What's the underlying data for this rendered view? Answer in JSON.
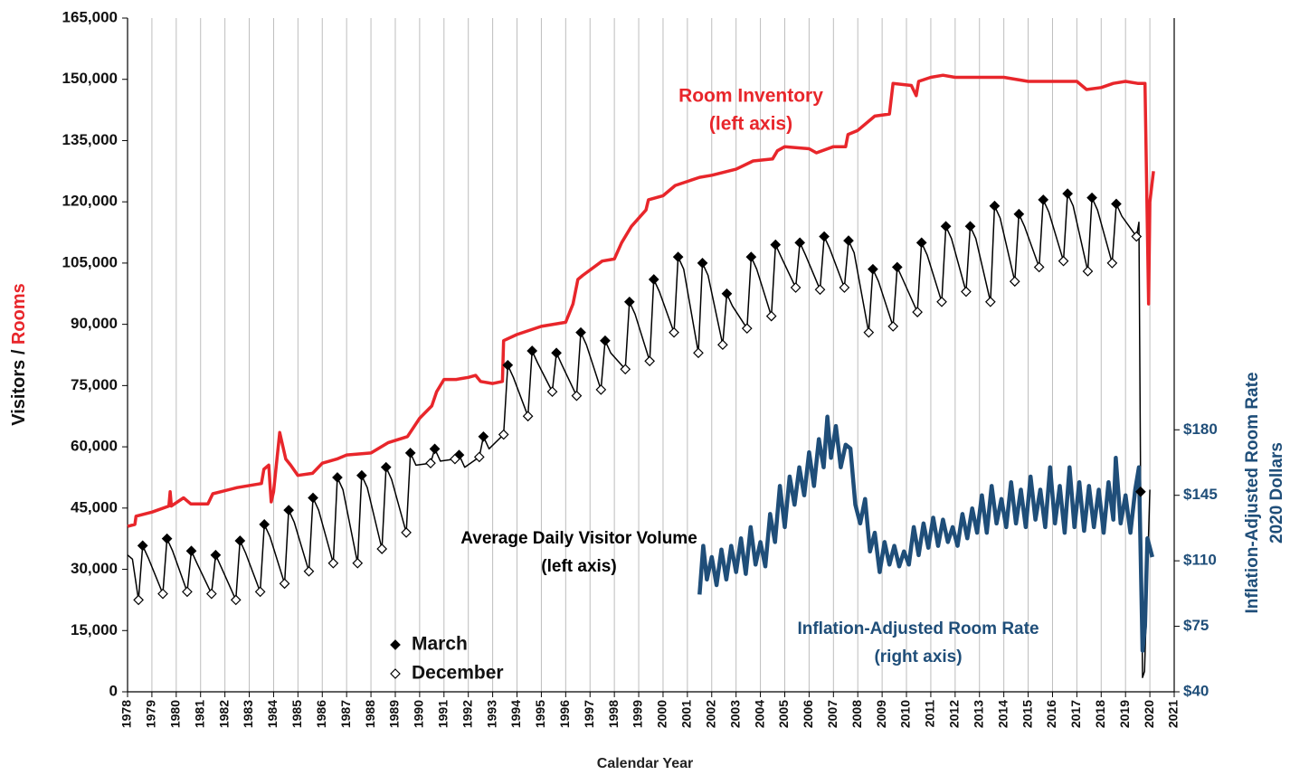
{
  "chart_data": {
    "type": "line",
    "xlabel": "Calendar Year",
    "ylabel": "Visitors /",
    "ylabel_highlight": "Rooms",
    "y2label": [
      "Inflation-Adjusted Room Rate",
      "2020 Dollars"
    ],
    "grid": true,
    "xlim": [
      1978,
      2021
    ],
    "xticks": [
      1978,
      1979,
      1980,
      1981,
      1982,
      1983,
      1984,
      1985,
      1986,
      1987,
      1988,
      1989,
      1990,
      1991,
      1992,
      1993,
      1994,
      1995,
      1996,
      1997,
      1998,
      1999,
      2000,
      2001,
      2002,
      2003,
      2004,
      2005,
      2006,
      2007,
      2008,
      2009,
      2010,
      2011,
      2012,
      2013,
      2014,
      2015,
      2016,
      2017,
      2018,
      2019,
      2020,
      2021
    ],
    "ylim": [
      0,
      165000
    ],
    "yticks": [
      0,
      {
        "value": 15000,
        "label": "15,000"
      },
      {
        "value": 30000,
        "label": "30,000"
      },
      {
        "value": 45000,
        "label": "45,000"
      },
      {
        "value": 60000,
        "label": "60,000"
      },
      {
        "value": 75000,
        "label": "75,000"
      },
      {
        "value": 90000,
        "label": "90,000"
      },
      {
        "value": 105000,
        "label": "105,000"
      },
      {
        "value": 120000,
        "label": "120,000"
      },
      {
        "value": 135000,
        "label": "135,000"
      },
      {
        "value": 150000,
        "label": "150,000"
      },
      {
        "value": 165000,
        "label": "165,000"
      }
    ],
    "y2lim": [
      40,
      400
    ],
    "y2ticks": [
      {
        "value": 40,
        "label": "$40"
      },
      {
        "value": 75,
        "label": "$75"
      },
      {
        "value": 110,
        "label": "$110"
      },
      {
        "value": 145,
        "label": "$145"
      },
      {
        "value": 180,
        "label": "$180"
      }
    ],
    "series": [
      {
        "name": "Room Inventory",
        "note": "(left axis)",
        "type": "line",
        "color": "#e8262b",
        "x": [
          1978.0,
          1978.3,
          1978.35,
          1979.0,
          1979.7,
          1979.75,
          1979.8,
          1980.3,
          1980.6,
          1981.3,
          1981.5,
          1982.5,
          1983.5,
          1983.6,
          1983.8,
          1983.85,
          1983.9,
          1984.0,
          1984.25,
          1984.5,
          1984.7,
          1985.0,
          1985.6,
          1986.0,
          1986.6,
          1987.0,
          1988.0,
          1988.7,
          1989.5,
          1990.0,
          1990.5,
          1990.7,
          1991.0,
          1991.5,
          1992.0,
          1992.3,
          1992.5,
          1993.0,
          1993.4,
          1993.45,
          1994.0,
          1995.0,
          1996.0,
          1996.3,
          1996.5,
          1996.7,
          1997.5,
          1998.0,
          1998.3,
          1998.7,
          1999.3,
          1999.4,
          2000.0,
          2000.5,
          2001.0,
          2001.5,
          2002.0,
          2003.0,
          2003.7,
          2004.5,
          2004.7,
          2005.0,
          2006.0,
          2006.3,
          2007.0,
          2007.5,
          2007.6,
          2008.0,
          2008.7,
          2009.3,
          2009.45,
          2010.2,
          2010.4,
          2010.5,
          2011.0,
          2011.5,
          2012.0,
          2013.0,
          2014.0,
          2015.0,
          2016.0,
          2017.0,
          2017.4,
          2018.0,
          2018.5,
          2019.0,
          2019.5,
          2019.8,
          2019.95,
          2020.0,
          2020.15
        ],
        "values": [
          40500,
          41000,
          43000,
          44000,
          45500,
          49000,
          45500,
          47500,
          46000,
          46000,
          48500,
          50000,
          51000,
          54500,
          55500,
          51000,
          46500,
          49000,
          63500,
          57000,
          55500,
          53000,
          53500,
          56000,
          57000,
          58000,
          58500,
          61000,
          62500,
          67000,
          70000,
          73500,
          76500,
          76500,
          77000,
          77500,
          76000,
          75500,
          76000,
          86000,
          87500,
          89500,
          90500,
          95000,
          101000,
          102000,
          105500,
          106000,
          110000,
          114000,
          118000,
          120500,
          121500,
          124000,
          125000,
          126000,
          126500,
          128000,
          130000,
          130500,
          132500,
          133500,
          133000,
          132000,
          133500,
          133500,
          136500,
          137500,
          141000,
          141500,
          149000,
          148500,
          146000,
          149500,
          150500,
          151000,
          150500,
          150500,
          150500,
          149500,
          149500,
          149500,
          147500,
          148000,
          149000,
          149500,
          149000,
          149000,
          95000,
          120000,
          127500
        ]
      },
      {
        "name": "Average Daily Visitor Volume",
        "note": "(left axis)",
        "type": "line",
        "color": "#000000",
        "x": [
          1978.0,
          1978.2,
          1978.45,
          1978.62,
          1978.85,
          1979.45,
          1979.62,
          1979.85,
          1980.45,
          1980.62,
          1980.85,
          1981.45,
          1981.62,
          1981.85,
          1982.45,
          1982.62,
          1982.85,
          1983.45,
          1983.62,
          1983.85,
          1984.45,
          1984.62,
          1984.85,
          1985.45,
          1985.62,
          1985.85,
          1986.45,
          1986.62,
          1986.85,
          1987.45,
          1987.62,
          1987.85,
          1988.45,
          1988.62,
          1988.85,
          1989.45,
          1989.62,
          1989.85,
          1990.45,
          1990.62,
          1990.85,
          1991.45,
          1991.62,
          1991.85,
          1992.45,
          1992.62,
          1992.85,
          1993.45,
          1993.62,
          1993.85,
          1994.45,
          1994.62,
          1994.85,
          1995.45,
          1995.62,
          1995.85,
          1996.45,
          1996.62,
          1996.85,
          1997.45,
          1997.62,
          1997.85,
          1998.45,
          1998.62,
          1998.85,
          1999.45,
          1999.62,
          1999.85,
          2000.45,
          2000.62,
          2000.85,
          2001.45,
          2001.62,
          2001.85,
          2002.45,
          2002.62,
          2002.85,
          2003.45,
          2003.62,
          2003.85,
          2004.45,
          2004.62,
          2004.85,
          2005.45,
          2005.62,
          2005.85,
          2006.45,
          2006.62,
          2006.85,
          2007.45,
          2007.62,
          2007.85,
          2008.45,
          2008.62,
          2008.85,
          2009.45,
          2009.62,
          2009.85,
          2010.45,
          2010.62,
          2010.85,
          2011.45,
          2011.62,
          2011.85,
          2012.45,
          2012.62,
          2012.85,
          2013.45,
          2013.62,
          2013.85,
          2014.45,
          2014.62,
          2014.85,
          2015.45,
          2015.62,
          2015.85,
          2016.45,
          2016.62,
          2016.85,
          2017.45,
          2017.62,
          2017.85,
          2018.45,
          2018.62,
          2018.85,
          2019.45,
          2019.55,
          2019.62,
          2019.7,
          2019.78,
          2020.0
        ],
        "values": [
          33500,
          32500,
          22500,
          35800,
          32800,
          24000,
          37500,
          34500,
          24500,
          34500,
          31500,
          24000,
          33500,
          30500,
          22500,
          37000,
          34000,
          24500,
          41000,
          38000,
          26500,
          44500,
          41500,
          29500,
          47500,
          44500,
          31500,
          52500,
          49500,
          31500,
          53000,
          50000,
          35000,
          55000,
          52000,
          39000,
          58500,
          55500,
          56000,
          59500,
          56500,
          57000,
          58000,
          55000,
          57500,
          62500,
          59500,
          63000,
          80000,
          77000,
          67500,
          83500,
          80500,
          73500,
          83000,
          80000,
          72500,
          88000,
          85000,
          74000,
          86000,
          83000,
          79000,
          95500,
          92500,
          81000,
          101000,
          98000,
          88000,
          106500,
          103500,
          83000,
          105000,
          102000,
          85000,
          97500,
          94500,
          89000,
          106500,
          103500,
          92000,
          109500,
          106500,
          99000,
          110000,
          107000,
          98500,
          111500,
          108500,
          99000,
          110500,
          107500,
          88000,
          103500,
          100500,
          89500,
          104000,
          101000,
          93000,
          110000,
          107000,
          95500,
          114000,
          111000,
          98000,
          114000,
          111000,
          95500,
          119000,
          116000,
          100500,
          117000,
          114000,
          104000,
          120500,
          117500,
          105500,
          122000,
          119000,
          103000,
          121000,
          118000,
          105000,
          119500,
          116500,
          111500,
          115000,
          49000,
          3500,
          5000,
          49500
        ]
      },
      {
        "name": "Inflation-Adjusted Room Rate",
        "note": "(right axis)",
        "type": "line",
        "color": "#1f4e79",
        "axis": "y2",
        "x": [
          2001.5,
          2001.65,
          2001.8,
          2002.0,
          2002.2,
          2002.4,
          2002.6,
          2002.8,
          2003.0,
          2003.2,
          2003.4,
          2003.6,
          2003.8,
          2004.0,
          2004.2,
          2004.4,
          2004.6,
          2004.8,
          2005.0,
          2005.2,
          2005.4,
          2005.6,
          2005.8,
          2006.0,
          2006.2,
          2006.4,
          2006.6,
          2006.75,
          2006.9,
          2007.1,
          2007.3,
          2007.5,
          2007.7,
          2007.9,
          2008.1,
          2008.3,
          2008.5,
          2008.7,
          2008.9,
          2009.1,
          2009.3,
          2009.5,
          2009.7,
          2009.9,
          2010.1,
          2010.3,
          2010.5,
          2010.7,
          2010.9,
          2011.1,
          2011.3,
          2011.5,
          2011.7,
          2011.9,
          2012.1,
          2012.3,
          2012.5,
          2012.7,
          2012.9,
          2013.1,
          2013.3,
          2013.5,
          2013.7,
          2013.9,
          2014.1,
          2014.3,
          2014.5,
          2014.7,
          2014.9,
          2015.1,
          2015.3,
          2015.5,
          2015.7,
          2015.9,
          2016.1,
          2016.3,
          2016.5,
          2016.7,
          2016.9,
          2017.1,
          2017.3,
          2017.5,
          2017.7,
          2017.9,
          2018.1,
          2018.3,
          2018.5,
          2018.6,
          2018.8,
          2019.0,
          2019.2,
          2019.4,
          2019.55,
          2019.7,
          2019.8,
          2019.9,
          2020.1
        ],
        "values": [
          92,
          118,
          100,
          112,
          97,
          116,
          100,
          118,
          104,
          122,
          103,
          128,
          108,
          120,
          107,
          135,
          120,
          150,
          128,
          155,
          140,
          160,
          145,
          168,
          150,
          175,
          160,
          187,
          165,
          182,
          160,
          172,
          170,
          140,
          130,
          143,
          115,
          125,
          104,
          120,
          108,
          118,
          107,
          115,
          108,
          128,
          113,
          130,
          117,
          133,
          118,
          132,
          120,
          128,
          118,
          135,
          122,
          138,
          125,
          145,
          125,
          150,
          130,
          143,
          128,
          152,
          130,
          148,
          128,
          155,
          132,
          148,
          128,
          160,
          130,
          150,
          125,
          160,
          128,
          152,
          126,
          150,
          128,
          148,
          125,
          152,
          132,
          165,
          130,
          145,
          125,
          148,
          160,
          62,
          75,
          122,
          112
        ]
      },
      {
        "name": "March",
        "type": "scatter",
        "marker": "filled-diamond",
        "color": "#000000",
        "x": [
          1978.62,
          1979.62,
          1980.62,
          1981.62,
          1982.62,
          1983.62,
          1984.62,
          1985.62,
          1986.62,
          1987.62,
          1988.62,
          1989.62,
          1990.62,
          1991.62,
          1992.62,
          1993.62,
          1994.62,
          1995.62,
          1996.62,
          1997.62,
          1998.62,
          1999.62,
          2000.62,
          2001.62,
          2002.62,
          2003.62,
          2004.62,
          2005.62,
          2006.62,
          2007.62,
          2008.62,
          2009.62,
          2010.62,
          2011.62,
          2012.62,
          2013.62,
          2014.62,
          2015.62,
          2016.62,
          2017.62,
          2018.62,
          2019.62
        ],
        "values": [
          35800,
          37500,
          34500,
          33500,
          37000,
          41000,
          44500,
          47500,
          52500,
          53000,
          55000,
          58500,
          59500,
          58000,
          62500,
          80000,
          83500,
          83000,
          88000,
          86000,
          95500,
          101000,
          106500,
          105000,
          97500,
          106500,
          109500,
          110000,
          111500,
          110500,
          103500,
          104000,
          110000,
          114000,
          114000,
          119000,
          117000,
          120500,
          122000,
          121000,
          119500,
          49000
        ]
      },
      {
        "name": "December",
        "type": "scatter",
        "marker": "open-diamond",
        "color": "#000000",
        "x": [
          1978.45,
          1979.45,
          1980.45,
          1981.45,
          1982.45,
          1983.45,
          1984.45,
          1985.45,
          1986.45,
          1987.45,
          1988.45,
          1989.45,
          1990.45,
          1991.45,
          1992.45,
          1993.45,
          1994.45,
          1995.45,
          1996.45,
          1997.45,
          1998.45,
          1999.45,
          2000.45,
          2001.45,
          2002.45,
          2003.45,
          2004.45,
          2005.45,
          2006.45,
          2007.45,
          2008.45,
          2009.45,
          2010.45,
          2011.45,
          2012.45,
          2013.45,
          2014.45,
          2015.45,
          2016.45,
          2017.45,
          2018.45,
          2019.45
        ],
        "values": [
          22500,
          24000,
          24500,
          24000,
          22500,
          24500,
          26500,
          29500,
          31500,
          31500,
          35000,
          39000,
          56000,
          57000,
          57500,
          63000,
          67500,
          73500,
          72500,
          74000,
          79000,
          81000,
          88000,
          83000,
          85000,
          89000,
          92000,
          99000,
          98500,
          99000,
          88000,
          89500,
          93000,
          95500,
          98000,
          95500,
          100500,
          104000,
          105500,
          103000,
          105000,
          111500
        ]
      }
    ]
  }
}
